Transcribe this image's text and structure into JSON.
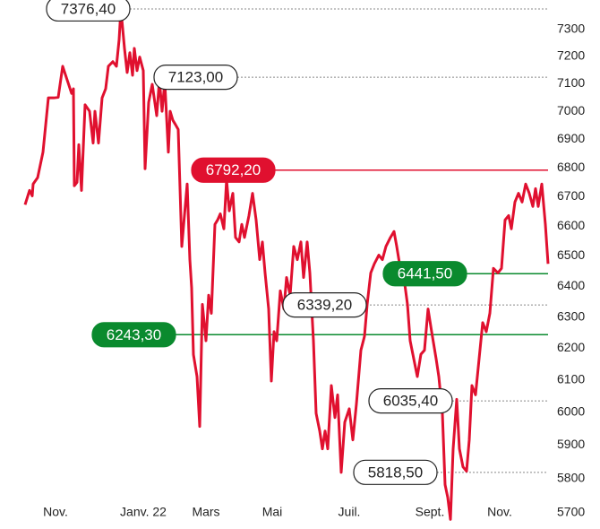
{
  "chart_data": {
    "type": "line",
    "color": "#e0102f",
    "log_y": true,
    "xlim": [
      0,
      146
    ],
    "xticks": [
      {
        "value": 8.5,
        "label": "Nov."
      },
      {
        "value": 33,
        "label": "Janv. 22"
      },
      {
        "value": 50.5,
        "label": "Mars"
      },
      {
        "value": 69,
        "label": "Mai"
      },
      {
        "value": 90.5,
        "label": "Juil."
      },
      {
        "value": 113,
        "label": "Sept."
      },
      {
        "value": 132.5,
        "label": "Nov."
      }
    ],
    "ylim": [
      5660,
      7400
    ],
    "yticks": [
      5700,
      5800,
      5900,
      6000,
      6100,
      6200,
      6300,
      6400,
      6500,
      6600,
      6700,
      6800,
      6900,
      7000,
      7100,
      7200,
      7300
    ],
    "x": [
      0,
      1.25,
      2,
      2.25,
      3.5,
      5,
      6.5,
      8,
      9.25,
      10.5,
      11.75,
      13,
      13.5,
      13.75,
      14.5,
      15,
      15.75,
      16.75,
      18,
      19,
      19.5,
      20.5,
      21.5,
      22.5,
      23.25,
      24.5,
      25.5,
      26.25,
      26.75,
      27.75,
      28.5,
      29.25,
      30,
      30.5,
      31.25,
      32,
      33,
      33.5,
      34.5,
      35.5,
      36.75,
      37.5,
      38.25,
      39,
      40,
      40.5,
      41.25,
      42,
      42.75,
      43.75,
      45.25,
      46,
      46.5,
      47,
      48,
      48.75,
      49.5,
      50.5,
      51.25,
      52,
      53,
      53.75,
      54.5,
      55.5,
      56.25,
      57,
      58,
      58.75,
      59.75,
      60.5,
      61.25,
      62.5,
      63.5,
      64.5,
      65.5,
      66.25,
      67,
      68,
      68.75,
      69.5,
      70.25,
      71.25,
      72.25,
      73,
      74,
      75,
      76,
      77,
      77.75,
      78.75,
      79.5,
      80.5,
      81.25,
      82.25,
      83,
      83.75,
      84.5,
      85.5,
      86.5,
      87.25,
      88.25,
      89.25,
      90.5,
      91.5,
      92.5,
      93.75,
      94.75,
      95.5,
      96.5,
      97.5,
      98.75,
      99.75,
      100.75,
      102,
      103,
      103.75,
      104.75,
      105.75,
      106.75,
      107.5,
      108.5,
      109.5,
      110.5,
      111.5,
      112.5,
      113.5,
      114.75,
      115.5,
      116.5,
      117.25,
      118,
      118.75,
      119.5,
      120.5,
      121.25,
      122.25,
      123.25,
      124,
      124.75,
      125.75,
      126.75,
      127.75,
      128.75,
      129.75,
      130.75,
      132,
      133,
      134,
      135,
      135.75,
      136.75,
      137.75,
      138.75,
      139.75,
      140.75,
      141.75,
      142.5,
      143.25,
      144.25,
      145.25,
      146
    ],
    "values": [
      6673,
      6722,
      6703,
      6744,
      6766,
      6855,
      7048,
      7048,
      7050,
      7163,
      7113,
      7064,
      7081,
      6738,
      6750,
      6881,
      6722,
      7023,
      7000,
      6887,
      7000,
      6887,
      7048,
      7081,
      7163,
      7180,
      7163,
      7261,
      7376.4,
      7229,
      7140,
      7213,
      7130,
      7229,
      7147,
      7197,
      7147,
      6797,
      7032,
      7097,
      6984,
      7113,
      7000,
      7107,
      6855,
      7000,
      6968,
      6952,
      6935,
      6532,
      6744,
      6488,
      6394,
      6180,
      6111,
      5957,
      6341,
      6224,
      6371,
      6312,
      6606,
      6621,
      6642,
      6591,
      6759,
      6652,
      6712,
      6562,
      6547,
      6606,
      6562,
      6636,
      6712,
      6621,
      6488,
      6547,
      6444,
      6326,
      6097,
      6253,
      6224,
      6385,
      6326,
      6429,
      6371,
      6532,
      6488,
      6547,
      6429,
      6547,
      6444,
      6224,
      5997,
      5943,
      5889,
      5943,
      5889,
      6083,
      5984,
      6054,
      5818.5,
      5970,
      6011,
      5916,
      6026,
      6194,
      6238,
      6341,
      6444,
      6474,
      6503,
      6488,
      6532,
      6562,
      6582,
      6532,
      6459,
      6429,
      6341,
      6224,
      6167,
      6111,
      6181,
      6194,
      6326,
      6253,
      6167,
      6111,
      5997,
      5782,
      5744,
      5680,
      5889,
      6040,
      5889,
      5835,
      5822,
      5916,
      6083,
      6054,
      6167,
      6282,
      6253,
      6312,
      6459,
      6444,
      6459,
      6621,
      6636,
      6591,
      6682,
      6712,
      6682,
      6744,
      6712,
      6667,
      6728,
      6667,
      6744,
      6606,
      6474
    ],
    "annotations": [
      {
        "value": 7376.4,
        "label": "7376,40",
        "style": "dashed",
        "color": "#888888"
      },
      {
        "value": 7123,
        "label": "7123,00",
        "style": "dashed",
        "color": "#888888"
      },
      {
        "value": 6792.2,
        "label": "6792,20",
        "style": "solid",
        "color": "#e0102f"
      },
      {
        "value": 6441.5,
        "label": "6441,50",
        "style": "solid",
        "color": "#0a8a2e"
      },
      {
        "value": 6339.2,
        "label": "6339,20",
        "style": "dashed",
        "color": "#888888"
      },
      {
        "value": 6243.3,
        "label": "6243,30",
        "style": "solid",
        "color": "#0a8a2e"
      },
      {
        "value": 6035.4,
        "label": "6035,40",
        "style": "dashed",
        "color": "#888888"
      },
      {
        "value": 5818.5,
        "label": "5818,50",
        "style": "dashed",
        "color": "#888888"
      }
    ]
  }
}
